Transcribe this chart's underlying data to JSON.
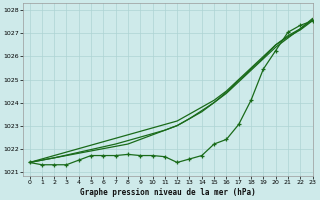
{
  "title": "Graphe pression niveau de la mer (hPa)",
  "background_color": "#ceeaea",
  "grid_color": "#aed4d4",
  "line_color": "#1a6b1a",
  "xlim": [
    -0.5,
    23
  ],
  "ylim": [
    1020.8,
    1028.3
  ],
  "yticks": [
    1021,
    1022,
    1023,
    1024,
    1025,
    1026,
    1027,
    1028
  ],
  "xticks": [
    0,
    1,
    2,
    3,
    4,
    5,
    6,
    7,
    8,
    9,
    10,
    11,
    12,
    13,
    14,
    15,
    16,
    17,
    18,
    19,
    20,
    21,
    22,
    23
  ],
  "series1": {
    "x": [
      0,
      1,
      2,
      3,
      4,
      5,
      6,
      7,
      8,
      9,
      10,
      11,
      12,
      13,
      14,
      15,
      16,
      17,
      18,
      19,
      20,
      21,
      22,
      23
    ],
    "y": [
      1021.4,
      1021.5,
      1021.6,
      1021.7,
      1021.8,
      1021.9,
      1022.0,
      1022.1,
      1022.2,
      1022.4,
      1022.6,
      1022.8,
      1023.0,
      1023.3,
      1023.6,
      1024.0,
      1024.4,
      1024.9,
      1025.4,
      1025.9,
      1026.4,
      1026.8,
      1027.2,
      1027.6
    ]
  },
  "series2": {
    "x": [
      0,
      1,
      2,
      3,
      4,
      5,
      6,
      7,
      8,
      9,
      10,
      11,
      12,
      13,
      14,
      15,
      16,
      17,
      18,
      19,
      20,
      21,
      22,
      23
    ],
    "y": [
      1021.4,
      1021.55,
      1021.7,
      1021.85,
      1022.0,
      1022.15,
      1022.3,
      1022.45,
      1022.6,
      1022.75,
      1022.9,
      1023.05,
      1023.2,
      1023.5,
      1023.8,
      1024.1,
      1024.5,
      1025.0,
      1025.5,
      1026.0,
      1026.5,
      1026.9,
      1027.2,
      1027.65
    ]
  },
  "series3": {
    "x": [
      0,
      1,
      2,
      3,
      4,
      5,
      6,
      7,
      8,
      9,
      10,
      11,
      12,
      13,
      14,
      15,
      16,
      17,
      18,
      19,
      20,
      21,
      22,
      23
    ],
    "y": [
      1021.4,
      1021.5,
      1021.6,
      1021.72,
      1021.84,
      1021.96,
      1022.08,
      1022.2,
      1022.35,
      1022.5,
      1022.65,
      1022.8,
      1023.0,
      1023.3,
      1023.65,
      1024.0,
      1024.45,
      1024.95,
      1025.45,
      1025.95,
      1026.5,
      1026.85,
      1027.15,
      1027.55
    ]
  },
  "series4_with_markers": {
    "x": [
      0,
      1,
      2,
      3,
      4,
      5,
      6,
      7,
      8,
      9,
      10,
      11,
      12,
      13,
      14,
      15,
      16,
      17,
      18,
      19,
      20,
      21,
      22,
      23
    ],
    "y": [
      1021.4,
      1021.3,
      1021.3,
      1021.3,
      1021.5,
      1021.7,
      1021.7,
      1021.7,
      1021.75,
      1021.7,
      1021.7,
      1021.65,
      1021.4,
      1021.55,
      1021.7,
      1022.2,
      1022.4,
      1023.05,
      1024.1,
      1025.45,
      1026.25,
      1027.05,
      1027.35,
      1027.55
    ]
  }
}
